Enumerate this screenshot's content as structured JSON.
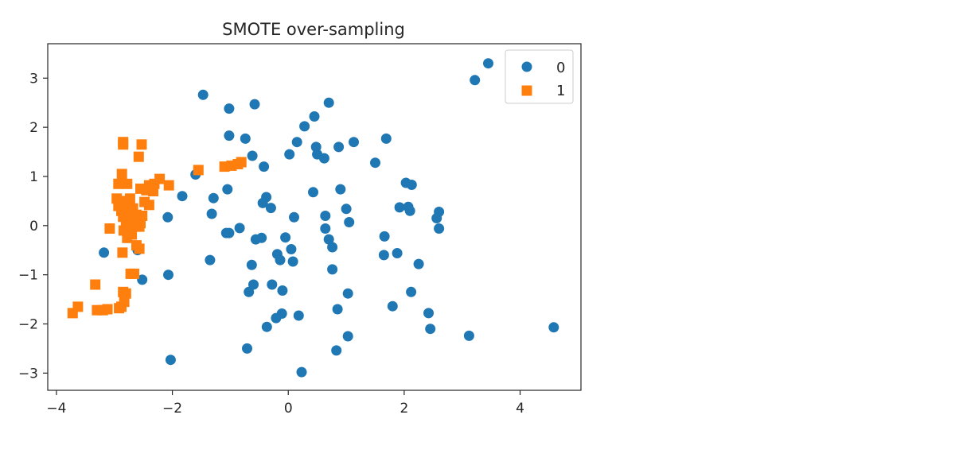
{
  "chart_data": {
    "type": "scatter",
    "title": "SMOTE over-sampling",
    "xlabel": "",
    "ylabel": "",
    "xlim": [
      -4.15,
      5.05
    ],
    "ylim": [
      -3.35,
      3.7
    ],
    "xticks": [
      -4,
      -2,
      0,
      2,
      4
    ],
    "yticks": [
      -3,
      -2,
      -1,
      0,
      1,
      2,
      3
    ],
    "grid": false,
    "legend": {
      "placement": "top-right"
    },
    "series": [
      {
        "name": "0",
        "marker": "circle",
        "color": "#1f77b4",
        "points": [
          [
            3.45,
            3.3
          ],
          [
            3.22,
            2.96
          ],
          [
            -1.47,
            2.66
          ],
          [
            -1.02,
            2.38
          ],
          [
            -0.58,
            2.47
          ],
          [
            0.7,
            2.5
          ],
          [
            0.45,
            2.22
          ],
          [
            0.28,
            2.02
          ],
          [
            -1.02,
            1.83
          ],
          [
            -0.74,
            1.77
          ],
          [
            1.69,
            1.77
          ],
          [
            0.15,
            1.7
          ],
          [
            1.13,
            1.7
          ],
          [
            0.48,
            1.6
          ],
          [
            0.87,
            1.6
          ],
          [
            0.5,
            1.45
          ],
          [
            -0.62,
            1.42
          ],
          [
            0.02,
            1.45
          ],
          [
            0.62,
            1.37
          ],
          [
            1.5,
            1.28
          ],
          [
            -0.42,
            1.2
          ],
          [
            -1.6,
            1.04
          ],
          [
            2.03,
            0.87
          ],
          [
            2.13,
            0.83
          ],
          [
            -1.05,
            0.74
          ],
          [
            0.9,
            0.74
          ],
          [
            0.43,
            0.68
          ],
          [
            -1.83,
            0.6
          ],
          [
            -1.29,
            0.56
          ],
          [
            -0.38,
            0.58
          ],
          [
            -0.44,
            0.46
          ],
          [
            -0.3,
            0.36
          ],
          [
            1.0,
            0.34
          ],
          [
            1.92,
            0.37
          ],
          [
            2.07,
            0.38
          ],
          [
            2.1,
            0.3
          ],
          [
            2.6,
            0.28
          ],
          [
            -1.32,
            0.24
          ],
          [
            0.64,
            0.2
          ],
          [
            -2.08,
            0.17
          ],
          [
            0.1,
            0.17
          ],
          [
            2.56,
            0.15
          ],
          [
            1.05,
            0.07
          ],
          [
            -0.84,
            -0.05
          ],
          [
            0.64,
            -0.06
          ],
          [
            2.6,
            -0.06
          ],
          [
            -1.07,
            -0.15
          ],
          [
            -0.46,
            -0.25
          ],
          [
            -0.56,
            -0.28
          ],
          [
            -0.05,
            -0.24
          ],
          [
            0.7,
            -0.28
          ],
          [
            1.66,
            -0.22
          ],
          [
            0.76,
            -0.44
          ],
          [
            0.05,
            -0.48
          ],
          [
            -0.19,
            -0.58
          ],
          [
            1.65,
            -0.6
          ],
          [
            1.88,
            -0.56
          ],
          [
            -3.18,
            -0.55
          ],
          [
            -0.14,
            -0.7
          ],
          [
            0.08,
            -0.73
          ],
          [
            -1.35,
            -0.7
          ],
          [
            -0.63,
            -0.8
          ],
          [
            2.25,
            -0.78
          ],
          [
            0.76,
            -0.89
          ],
          [
            -2.07,
            -1.0
          ],
          [
            -2.52,
            -1.1
          ],
          [
            -0.28,
            -1.2
          ],
          [
            -0.6,
            -1.2
          ],
          [
            -0.1,
            -1.32
          ],
          [
            -0.68,
            -1.35
          ],
          [
            2.12,
            -1.35
          ],
          [
            1.03,
            -1.38
          ],
          [
            1.8,
            -1.64
          ],
          [
            0.85,
            -1.7
          ],
          [
            -0.11,
            -1.79
          ],
          [
            -0.21,
            -1.88
          ],
          [
            0.18,
            -1.83
          ],
          [
            2.42,
            -1.78
          ],
          [
            -0.37,
            -2.06
          ],
          [
            2.45,
            -2.1
          ],
          [
            4.58,
            -2.07
          ],
          [
            3.12,
            -2.24
          ],
          [
            1.03,
            -2.25
          ],
          [
            -0.71,
            -2.5
          ],
          [
            0.83,
            -2.54
          ],
          [
            -2.03,
            -2.73
          ],
          [
            0.23,
            -2.98
          ],
          [
            -1.02,
            -0.15
          ],
          [
            -2.6,
            -0.5
          ]
        ]
      },
      {
        "name": "1",
        "marker": "square",
        "color": "#ff7f0e",
        "points": [
          [
            -2.85,
            1.7
          ],
          [
            -2.85,
            1.65
          ],
          [
            -2.53,
            1.65
          ],
          [
            -2.58,
            1.4
          ],
          [
            -1.55,
            1.13
          ],
          [
            -1.1,
            1.2
          ],
          [
            -0.98,
            1.22
          ],
          [
            -0.87,
            1.25
          ],
          [
            -0.81,
            1.29
          ],
          [
            -2.87,
            1.05
          ],
          [
            -2.78,
            0.85
          ],
          [
            -2.93,
            0.85
          ],
          [
            -2.22,
            0.95
          ],
          [
            -2.31,
            0.85
          ],
          [
            -2.4,
            0.82
          ],
          [
            -2.06,
            0.82
          ],
          [
            -2.55,
            0.75
          ],
          [
            -2.45,
            0.72
          ],
          [
            -2.33,
            0.7
          ],
          [
            -2.73,
            0.55
          ],
          [
            -2.96,
            0.55
          ],
          [
            -2.86,
            0.5
          ],
          [
            -2.48,
            0.48
          ],
          [
            -2.78,
            0.42
          ],
          [
            -2.93,
            0.4
          ],
          [
            -2.4,
            0.42
          ],
          [
            -2.68,
            0.35
          ],
          [
            -2.88,
            0.3
          ],
          [
            -2.81,
            0.28
          ],
          [
            -2.75,
            0.25
          ],
          [
            -2.62,
            0.22
          ],
          [
            -2.52,
            0.2
          ],
          [
            -2.85,
            0.18
          ],
          [
            -2.73,
            0.15
          ],
          [
            -2.66,
            0.12
          ],
          [
            -2.6,
            0.1
          ],
          [
            -2.8,
            0.08
          ],
          [
            -2.7,
            0.05
          ],
          [
            -2.55,
            0.05
          ],
          [
            -2.78,
            0.0
          ],
          [
            -2.64,
            -0.02
          ],
          [
            -2.72,
            -0.05
          ],
          [
            -2.57,
            -0.02
          ],
          [
            -3.08,
            -0.06
          ],
          [
            -2.84,
            -0.1
          ],
          [
            -2.7,
            -0.18
          ],
          [
            -2.78,
            -0.25
          ],
          [
            -2.62,
            -0.4
          ],
          [
            -2.57,
            -0.47
          ],
          [
            -2.86,
            -0.55
          ],
          [
            -2.72,
            -0.98
          ],
          [
            -2.66,
            -0.98
          ],
          [
            -3.33,
            -1.2
          ],
          [
            -2.85,
            -1.35
          ],
          [
            -2.8,
            -1.38
          ],
          [
            -2.83,
            -1.55
          ],
          [
            -2.88,
            -1.65
          ],
          [
            -3.63,
            -1.65
          ],
          [
            -3.72,
            -1.78
          ],
          [
            -3.3,
            -1.72
          ],
          [
            -3.12,
            -1.7
          ],
          [
            -2.92,
            -1.68
          ],
          [
            -3.2,
            -1.72
          ]
        ]
      }
    ]
  }
}
